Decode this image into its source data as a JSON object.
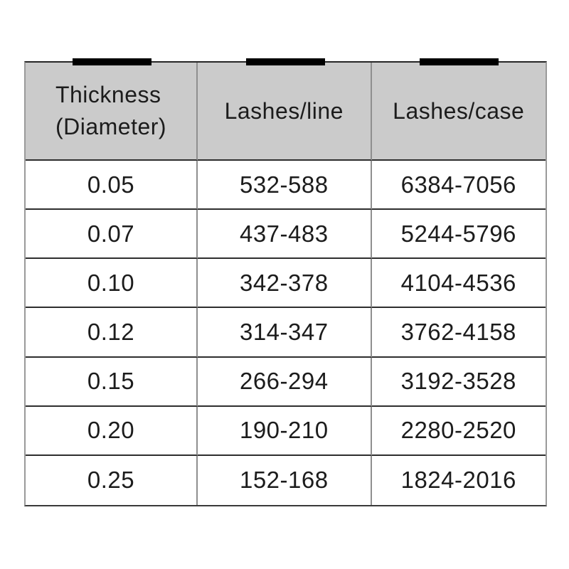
{
  "colors": {
    "background": "#ffffff",
    "header_bg": "#cbcbcb",
    "horizontal_border": "#2e2e2e",
    "vertical_border": "#8f8f8f",
    "tape_mark": "#000000",
    "text": "#1c1c1c"
  },
  "chart_data": {
    "type": "table",
    "title": "",
    "columns": [
      "Thickness (Diameter)",
      "Lashes/line",
      "Lashes/case"
    ],
    "header_lines": [
      [
        "Thickness",
        "(Diameter)"
      ],
      [
        "Lashes/line"
      ],
      [
        "Lashes/case"
      ]
    ],
    "rows": [
      [
        "0.05",
        "532-588",
        "6384-7056"
      ],
      [
        "0.07",
        "437-483",
        "5244-5796"
      ],
      [
        "0.10",
        "342-378",
        "4104-4536"
      ],
      [
        "0.12",
        "314-347",
        "3762-4158"
      ],
      [
        "0.15",
        "266-294",
        "3192-3528"
      ],
      [
        "0.20",
        "190-210",
        "2280-2520"
      ],
      [
        "0.25",
        "152-168",
        "1824-2016"
      ]
    ]
  }
}
